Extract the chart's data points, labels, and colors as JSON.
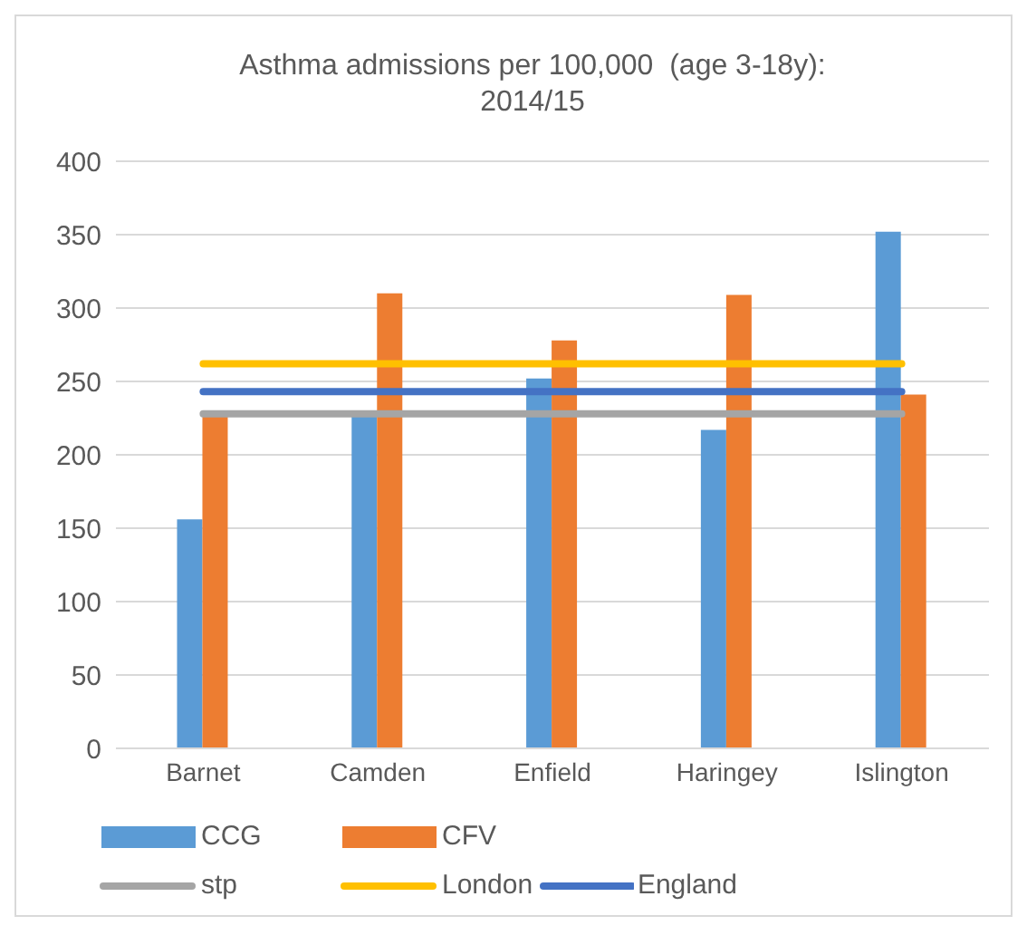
{
  "chart_data": {
    "type": "bar",
    "title": "Asthma admissions per 100,000  (age 3-18y): 2014/15",
    "categories": [
      "Barnet",
      "Camden",
      "Enfield",
      "Haringey",
      "Islington"
    ],
    "series": [
      {
        "name": "CCG",
        "color": "#5b9bd5",
        "values": [
          156,
          227,
          252,
          217,
          352
        ]
      },
      {
        "name": "CFV",
        "color": "#ed7d31",
        "values": [
          227,
          310,
          278,
          309,
          241
        ]
      },
      {
        "name": "stp",
        "type": "line",
        "color": "#a5a5a5",
        "values": [
          228,
          228,
          228,
          228,
          228
        ]
      },
      {
        "name": "London",
        "type": "line",
        "color": "#ffc000",
        "values": [
          262,
          262,
          262,
          262,
          262
        ]
      },
      {
        "name": "England",
        "type": "line",
        "color": "#4472c4",
        "values": [
          243,
          243,
          243,
          243,
          243
        ]
      }
    ],
    "ylim": [
      0,
      400
    ],
    "yticks": [
      0,
      50,
      100,
      150,
      200,
      250,
      300,
      350,
      400
    ],
    "grid": "y",
    "legend": "bottom",
    "marker": "none"
  }
}
